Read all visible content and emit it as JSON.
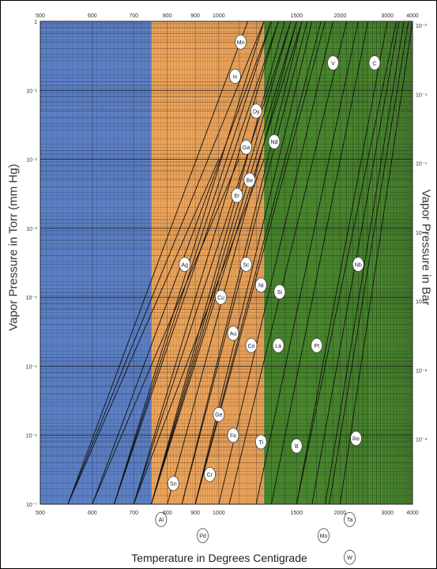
{
  "chart_data": {
    "type": "line",
    "xlabel": "Temperature in Degrees Centigrade",
    "ylabel_left": "Vapor Pressure in Torr (mm Hg)",
    "ylabel_right": "Vapor Pressure in Bar",
    "x_scale": "reciprocal",
    "y_scale": "log",
    "xlim": [
      500,
      4000
    ],
    "ylim": [
      1e-07,
      1
    ],
    "x_ticks": [
      {
        "value": 500,
        "label": "500"
      },
      {
        "value": 600,
        "label": "600"
      },
      {
        "value": 700,
        "label": "700"
      },
      {
        "value": 800,
        "label": "800"
      },
      {
        "value": 900,
        "label": "900"
      },
      {
        "value": 1000,
        "label": "1000"
      },
      {
        "value": 1500,
        "label": "1500"
      },
      {
        "value": 2000,
        "label": "2000"
      },
      {
        "value": 3000,
        "label": "3000"
      },
      {
        "value": 4000,
        "label": "4000"
      }
    ],
    "y_ticks_left": [
      {
        "value": 1,
        "label": "1"
      },
      {
        "value": 0.1,
        "label": "10⁻¹"
      },
      {
        "value": 0.01,
        "label": "10⁻²"
      },
      {
        "value": 0.001,
        "label": "10⁻³"
      },
      {
        "value": 0.0001,
        "label": "10⁻⁴"
      },
      {
        "value": 1e-05,
        "label": "10⁻⁵"
      },
      {
        "value": 1e-06,
        "label": "10⁻⁶"
      },
      {
        "value": 1e-07,
        "label": "10⁻⁷"
      }
    ],
    "y_ticks_right": [
      {
        "value": 1,
        "label": "10⁻³"
      },
      {
        "value": 0.1,
        "label": "10⁻⁴"
      },
      {
        "value": 0.01,
        "label": "10⁻⁵"
      },
      {
        "value": 0.001,
        "label": "10⁻⁶"
      },
      {
        "value": 0.0001,
        "label": "10⁻⁷"
      },
      {
        "value": 1e-05,
        "label": "10⁻⁸"
      },
      {
        "value": 1e-06,
        "label": "10⁻⁹"
      }
    ],
    "bands": [
      {
        "from": 500,
        "to": 750,
        "color": "#5b7fc4"
      },
      {
        "from": 750,
        "to": 1250,
        "color": "#eda45a"
      },
      {
        "from": 1250,
        "to": 4000,
        "color": "#4a8a2e"
      }
    ],
    "series": [
      {
        "name": "Al",
        "x": [
          550,
          1000
        ],
        "y": [
          1e-07,
          0.01
        ]
      },
      {
        "name": "Sn",
        "x": [
          600,
          1100
        ],
        "y": [
          1e-07,
          0.01
        ]
      },
      {
        "name": "Ag",
        "x": [
          550,
          1150
        ],
        "y": [
          1e-07,
          1
        ]
      },
      {
        "name": "Pd",
        "x": [
          700,
          1250
        ],
        "y": [
          1e-07,
          0.01
        ]
      },
      {
        "name": "Cr",
        "x": [
          800,
          1500
        ],
        "y": [
          1e-07,
          1
        ]
      },
      {
        "name": "Ge",
        "x": [
          750,
          1400
        ],
        "y": [
          1e-07,
          1
        ]
      },
      {
        "name": "Fe",
        "x": [
          850,
          1550
        ],
        "y": [
          1e-07,
          1
        ]
      },
      {
        "name": "Ti",
        "x": [
          900,
          1800
        ],
        "y": [
          1e-07,
          1
        ]
      },
      {
        "name": "Au",
        "x": [
          750,
          1550
        ],
        "y": [
          1e-07,
          1
        ]
      },
      {
        "name": "Co",
        "x": [
          850,
          1600
        ],
        "y": [
          1e-07,
          1
        ]
      },
      {
        "name": "Cu",
        "x": [
          700,
          1450
        ],
        "y": [
          1e-07,
          1
        ]
      },
      {
        "name": "Sc",
        "x": [
          750,
          1500
        ],
        "y": [
          1e-07,
          1
        ]
      },
      {
        "name": "Ni",
        "x": [
          900,
          1650
        ],
        "y": [
          1e-07,
          1
        ]
      },
      {
        "name": "Si",
        "x": [
          900,
          1750
        ],
        "y": [
          1e-07,
          1
        ]
      },
      {
        "name": "La",
        "x": [
          1000,
          1900
        ],
        "y": [
          1e-07,
          1
        ]
      },
      {
        "name": "Er",
        "x": [
          650,
          1250
        ],
        "y": [
          1e-07,
          1
        ]
      },
      {
        "name": "Be",
        "x": [
          700,
          1350
        ],
        "y": [
          1e-07,
          1
        ]
      },
      {
        "name": "Ga",
        "x": [
          650,
          1300
        ],
        "y": [
          1e-07,
          1
        ]
      },
      {
        "name": "Nd",
        "x": [
          750,
          1450
        ],
        "y": [
          1e-07,
          1
        ]
      },
      {
        "name": "Dy",
        "x": [
          650,
          1350
        ],
        "y": [
          1e-07,
          1
        ]
      },
      {
        "name": "In",
        "x": [
          550,
          1250
        ],
        "y": [
          1e-07,
          1
        ]
      },
      {
        "name": "Mn",
        "x": [
          600,
          1300
        ],
        "y": [
          1e-07,
          1
        ]
      },
      {
        "name": "B",
        "x": [
          1300,
          2500
        ],
        "y": [
          1e-07,
          1
        ]
      },
      {
        "name": "Pt",
        "x": [
          1200,
          2300
        ],
        "y": [
          1e-07,
          1
        ]
      },
      {
        "name": "V",
        "x": [
          1050,
          2100
        ],
        "y": [
          1e-07,
          1
        ]
      },
      {
        "name": "Nb",
        "x": [
          1650,
          3400
        ],
        "y": [
          1e-07,
          1
        ]
      },
      {
        "name": "C",
        "x": [
          1500,
          3300
        ],
        "y": [
          1e-07,
          1
        ]
      },
      {
        "name": "Mo",
        "x": [
          1500,
          3000
        ],
        "y": [
          1e-07,
          1
        ]
      },
      {
        "name": "Re",
        "x": [
          1800,
          3600
        ],
        "y": [
          1e-07,
          1
        ]
      },
      {
        "name": "Ta",
        "x": [
          1850,
          3800
        ],
        "y": [
          1e-07,
          1
        ]
      },
      {
        "name": "W",
        "x": [
          2000,
          4000
        ],
        "y": [
          1e-07,
          1
        ]
      }
    ],
    "labels": [
      {
        "text": "Mn",
        "x": 1110,
        "y": 0.5
      },
      {
        "text": "In",
        "x": 1080,
        "y": 0.16
      },
      {
        "text": "Dy",
        "x": 1200,
        "y": 0.05
      },
      {
        "text": "Nd",
        "x": 1320,
        "y": 0.018
      },
      {
        "text": "Ga",
        "x": 1140,
        "y": 0.015
      },
      {
        "text": "Be",
        "x": 1160,
        "y": 0.005
      },
      {
        "text": "Er",
        "x": 1090,
        "y": 0.003
      },
      {
        "text": "V",
        "x": 1900,
        "y": 0.25
      },
      {
        "text": "C",
        "x": 2650,
        "y": 0.25
      },
      {
        "text": "Ag",
        "x": 860,
        "y": 0.0003
      },
      {
        "text": "Sc",
        "x": 1140,
        "y": 0.0003
      },
      {
        "text": "Ni",
        "x": 1230,
        "y": 0.00015
      },
      {
        "text": "Si",
        "x": 1360,
        "y": 0.00012
      },
      {
        "text": "Nb",
        "x": 2300,
        "y": 0.0003
      },
      {
        "text": "Cu",
        "x": 1010,
        "y": 0.0001
      },
      {
        "text": "Au",
        "x": 1070,
        "y": 3e-05
      },
      {
        "text": "Co",
        "x": 1170,
        "y": 2e-05
      },
      {
        "text": "La",
        "x": 1350,
        "y": 2e-05
      },
      {
        "text": "Pt",
        "x": 1700,
        "y": 2e-05
      },
      {
        "text": "Ge",
        "x": 1000,
        "y": 2e-06
      },
      {
        "text": "Fe",
        "x": 1070,
        "y": 1e-06
      },
      {
        "text": "Ti",
        "x": 1230,
        "y": 8e-07
      },
      {
        "text": "B",
        "x": 1500,
        "y": 7e-07
      },
      {
        "text": "Re",
        "x": 2260,
        "y": 9e-07
      },
      {
        "text": "Cr",
        "x": 960,
        "y": 2.7e-07
      },
      {
        "text": "Sn",
        "x": 820,
        "y": 2e-07
      },
      {
        "text": "Al",
        "x": 780,
        "y": 6e-08
      },
      {
        "text": "Pd",
        "x": 930,
        "y": 3.5e-08
      },
      {
        "text": "Mo",
        "x": 1780,
        "y": 3.5e-08
      },
      {
        "text": "Ta",
        "x": 2150,
        "y": 6e-08
      },
      {
        "text": "W",
        "x": 2150,
        "y": 1.7e-08
      }
    ]
  }
}
